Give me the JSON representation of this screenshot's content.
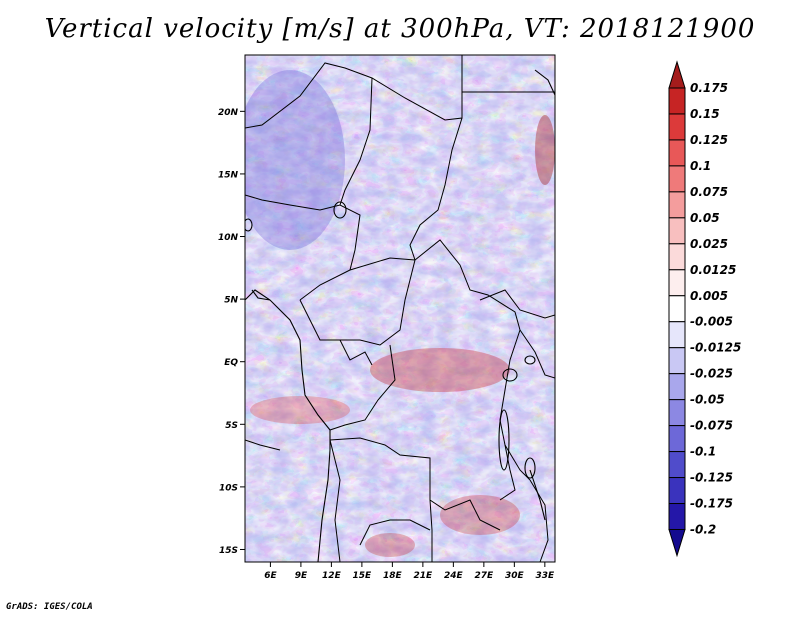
{
  "title": "Vertical velocity [m/s] at 300hPa, VT: 2018121900",
  "credit": "GrADS: IGES/COLA",
  "map": {
    "lat_labels": [
      "20N",
      "15N",
      "10N",
      "5N",
      "EQ",
      "5S",
      "10S",
      "15S"
    ],
    "lat_values": [
      20,
      15,
      10,
      5,
      0,
      -5,
      -10,
      -15
    ],
    "lon_labels": [
      "6E",
      "9E",
      "12E",
      "15E",
      "18E",
      "21E",
      "24E",
      "27E",
      "30E",
      "33E"
    ],
    "lon_values": [
      6,
      9,
      12,
      15,
      18,
      21,
      24,
      27,
      30,
      33
    ],
    "lat_range": [
      -16,
      24.5
    ],
    "lon_range": [
      3.5,
      34
    ]
  },
  "colorbar": {
    "labels": [
      "0.175",
      "0.15",
      "0.125",
      "0.1",
      "0.075",
      "0.05",
      "0.025",
      "0.0125",
      "0.005",
      "-0.005",
      "-0.0125",
      "-0.025",
      "-0.05",
      "-0.075",
      "-0.1",
      "-0.125",
      "-0.175",
      "-0.2"
    ],
    "colors": [
      "#a51c1c",
      "#c62424",
      "#dc3a3a",
      "#e85858",
      "#ef7a7a",
      "#f49d9d",
      "#f8bfbf",
      "#fbdada",
      "#fdeeee",
      "#ffffff",
      "#e6e6fb",
      "#c9c8f4",
      "#a9a7ec",
      "#8c88e3",
      "#6d68d8",
      "#504ccb",
      "#3a33bd",
      "#2417a8",
      "#140a8f"
    ]
  }
}
